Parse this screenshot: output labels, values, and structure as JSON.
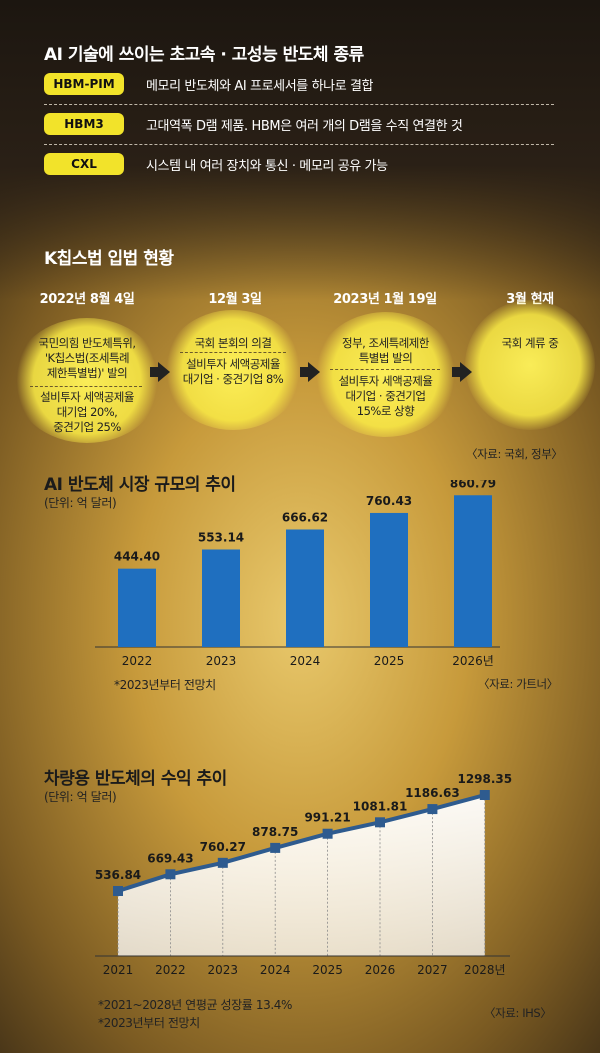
{
  "section1": {
    "title": "AI 기술에 쓰이는 초고속 · 고성능 반도체 종류",
    "items": [
      {
        "chip": "HBM-PIM",
        "desc": "메모리 반도체와 AI 프로세서를 하나로 결합"
      },
      {
        "chip": "HBM3",
        "desc": "고대역폭 D램 제품. HBM은 여러 개의 D램을 수직 연결한 것"
      },
      {
        "chip": "CXL",
        "desc": "시스템 내 여러 장치와 통신 · 메모리 공유 가능"
      }
    ],
    "chip_color": "#f2e32a"
  },
  "section2": {
    "title": "K칩스법 입법 현황",
    "steps": [
      {
        "date": "2022년 8월 4일",
        "top": [
          "국민의힘 반도체특위,",
          "'K칩스법(조세특례",
          "제한특별법)' 발의"
        ],
        "bottom": [
          "설비투자 세액공제율",
          "대기업 20%,",
          "중견기업 25%"
        ]
      },
      {
        "date": "12월 3일",
        "top": [
          "국회 본회의 의결"
        ],
        "bottom": [
          "설비투자 세액공제율",
          "대기업 · 중견기업 8%"
        ]
      },
      {
        "date": "2023년 1월 19일",
        "top": [
          "정부, 조세특례제한",
          "특별법 발의"
        ],
        "bottom": [
          "설비투자 세액공제율",
          "대기업 · 중견기업",
          "15%로 상향"
        ]
      },
      {
        "date": "3월 현재",
        "top": [
          "국회 계류 중"
        ],
        "bottom": []
      }
    ],
    "source": "〈자료: 국회, 정부〉"
  },
  "section3": {
    "title": "AI 반도체 시장 규모의 추이",
    "unit": "(단위: 억 달러)",
    "note": "*2023년부터 전망치",
    "source": "〈자료: 가트너〉",
    "bar_color": "#1f6fbf"
  },
  "section4": {
    "title": "차량용 반도체의 수익 추이",
    "unit": "(단위: 억 달러)",
    "notes": [
      "*2021~2028년 연평균 성장률 13.4%",
      "*2023년부터 전망치"
    ],
    "source": "〈자료: IHS〉",
    "line_color": "#2e5b8f"
  },
  "chart_data": [
    {
      "type": "bar",
      "title": "AI 반도체 시장 규모의 추이",
      "categories": [
        "2022",
        "2023",
        "2024",
        "2025",
        "2026년"
      ],
      "values": [
        444.4,
        553.14,
        666.62,
        760.43,
        860.79
      ],
      "value_labels": [
        "444.40",
        "553.14",
        "666.62",
        "760.43",
        "860.79"
      ],
      "ylim": [
        0,
        900
      ]
    },
    {
      "type": "line",
      "title": "차량용 반도체의 수익 추이",
      "categories": [
        "2021",
        "2022",
        "2023",
        "2024",
        "2025",
        "2026",
        "2027",
        "2028년"
      ],
      "values": [
        536.84,
        669.43,
        760.27,
        878.75,
        991.21,
        1081.81,
        1186.63,
        1298.35
      ],
      "value_labels": [
        "536.84",
        "669.43",
        "760.27",
        "878.75",
        "991.21",
        "1081.81",
        "1186.63",
        "1298.35"
      ],
      "ylim": [
        0,
        1400
      ]
    }
  ]
}
